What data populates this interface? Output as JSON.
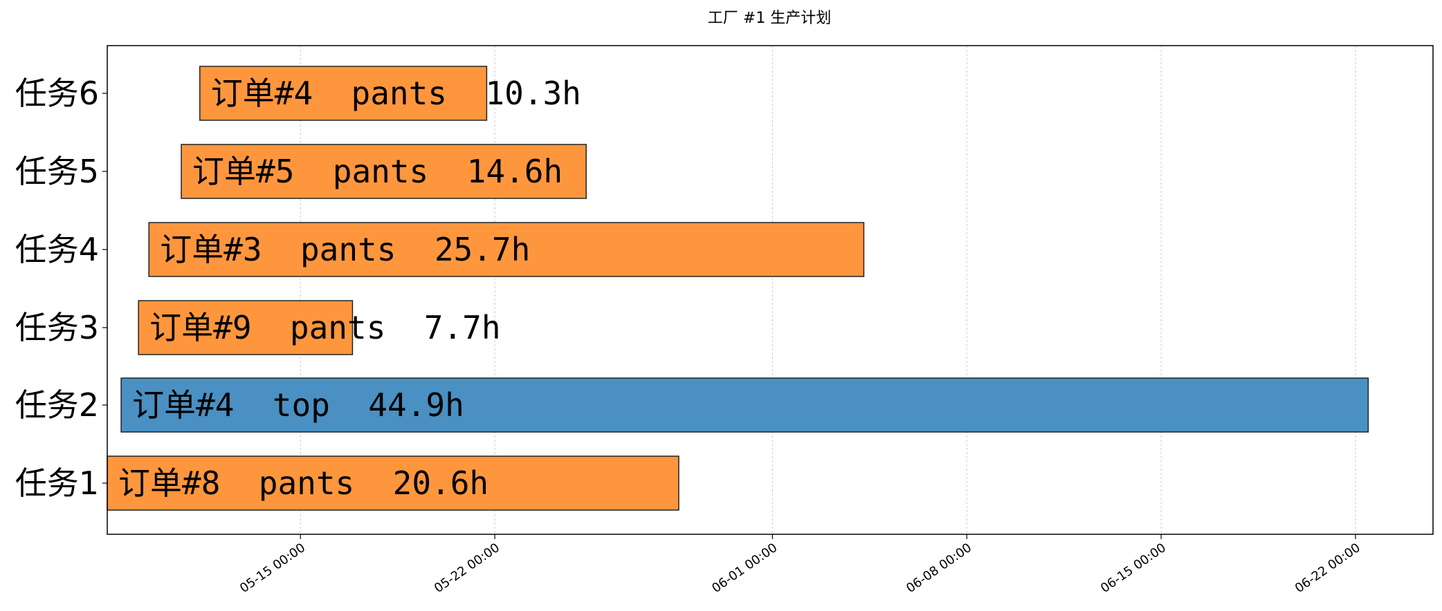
{
  "chart_data": {
    "type": "bar",
    "orientation": "horizontal-gantt",
    "title": "工厂 #1 生产计划",
    "xlabel": "",
    "ylabel": "",
    "categories": [
      "任务1",
      "任务2",
      "任务3",
      "任务4",
      "任务5",
      "任务6"
    ],
    "x_tick_labels": [
      "05-15 00:00",
      "05-22 00:00",
      "06-01 00:00",
      "06-08 00:00",
      "06-15 00:00",
      "06-22 00:00"
    ],
    "xlim": [
      "2025-05-08 01:00",
      "2025-06-24 19:00"
    ],
    "grid": {
      "x": true,
      "y": false,
      "style": "dotted"
    },
    "colors": {
      "pants": "#fe963d",
      "top": "#4a90c2",
      "edge": "#222222"
    },
    "tasks": [
      {
        "task": "任务1",
        "start": "2025-05-08 01:00",
        "end": "2025-05-28 15:00",
        "label": "订单#8  pants  20.6h",
        "product": "pants"
      },
      {
        "task": "任务2",
        "start": "2025-05-08 13:00",
        "end": "2025-06-22 11:00",
        "label": "订单#4  top  44.9h",
        "product": "top"
      },
      {
        "task": "任务3",
        "start": "2025-05-09 04:00",
        "end": "2025-05-16 21:00",
        "label": "订单#9  pants  7.7h",
        "product": "pants"
      },
      {
        "task": "任务4",
        "start": "2025-05-09 13:00",
        "end": "2025-06-04 07:00",
        "label": "订单#3  pants  25.7h",
        "product": "pants"
      },
      {
        "task": "任务5",
        "start": "2025-05-10 17:00",
        "end": "2025-05-25 07:00",
        "label": "订单#5  pants  14.6h",
        "product": "pants"
      },
      {
        "task": "任务6",
        "start": "2025-05-11 09:00",
        "end": "2025-05-21 17:00",
        "label": "订单#4  pants  10.3h",
        "product": "pants"
      }
    ]
  }
}
